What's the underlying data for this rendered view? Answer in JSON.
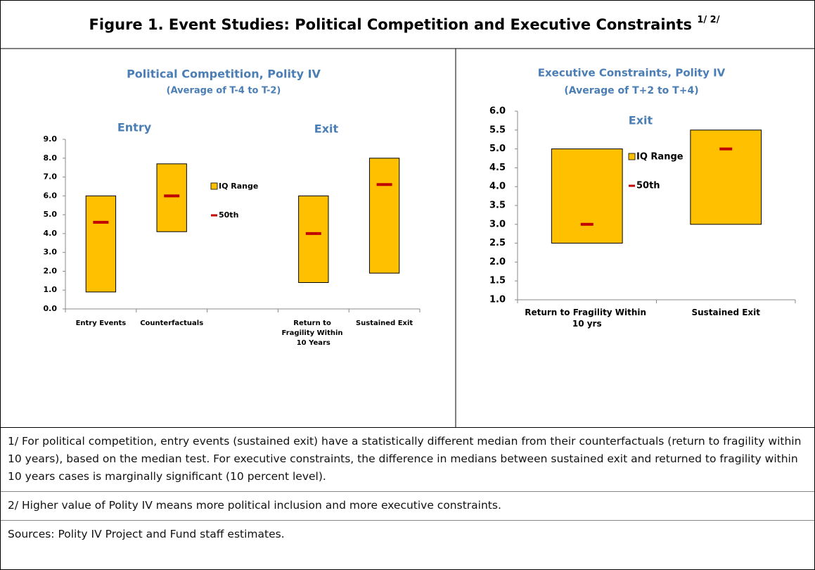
{
  "title": "Figure 1. Event Studies: Political Competition and Executive Constraints",
  "title_superscript": "1/ 2/",
  "chart_data": [
    {
      "type": "range",
      "title": "Political Competition, Polity IV",
      "subtitle": "(Average of T-4 to T-2)",
      "annotations": [
        "Entry",
        "Exit"
      ],
      "categories": [
        "Entry Events",
        "Counterfactuals",
        null,
        "Return to Fragility Within 10 Years",
        "Sustained Exit"
      ],
      "series": [
        {
          "name": "IQ Range",
          "color": "#ffc000",
          "low": [
            0.9,
            4.1,
            null,
            1.4,
            1.9
          ],
          "high": [
            6.0,
            7.7,
            null,
            6.0,
            8.0
          ]
        },
        {
          "name": "50th",
          "color": "#c00000",
          "values": [
            4.6,
            6.0,
            null,
            4.0,
            6.6
          ]
        }
      ],
      "ylim": [
        0,
        9
      ],
      "yticks": [
        {
          "value": 0,
          "label": "0.0"
        },
        {
          "value": 1,
          "label": "1.0"
        },
        {
          "value": 2,
          "label": "2.0"
        },
        {
          "value": 3,
          "label": "3.0"
        },
        {
          "value": 4,
          "label": "4.0"
        },
        {
          "value": 5,
          "label": "5.0"
        },
        {
          "value": 6,
          "label": "6.0"
        },
        {
          "value": 7,
          "label": "7.0"
        },
        {
          "value": 8,
          "label": "8.0"
        },
        {
          "value": 9,
          "label": "9.0"
        }
      ]
    },
    {
      "type": "range",
      "title": "Executive Constraints, Polity IV",
      "subtitle": "(Average  of T+2 to T+4)",
      "annotations": [
        "Exit"
      ],
      "categories": [
        "Return to Fragility Within 10 yrs",
        "Sustained Exit"
      ],
      "series": [
        {
          "name": "IQ Range",
          "color": "#ffc000",
          "low": [
            2.5,
            3.0
          ],
          "high": [
            5.0,
            5.5
          ]
        },
        {
          "name": "50th",
          "color": "#c00000",
          "values": [
            3.0,
            5.0
          ]
        }
      ],
      "ylim": [
        1,
        6
      ],
      "yticks": [
        {
          "value": 1,
          "label": "1.0"
        },
        1.5,
        {
          "value": 2,
          "label": "2.0"
        },
        2.5,
        {
          "value": 3,
          "label": "3.0"
        },
        3.5,
        {
          "value": 4,
          "label": "4.0"
        },
        4.5,
        {
          "value": 5,
          "label": "5.0"
        },
        5.5,
        {
          "value": 6,
          "label": "6.0"
        }
      ]
    }
  ],
  "notes": [
    "1/ For political competition, entry events (sustained exit) have a statistically different median from their counterfactuals (return to fragility within 10 years), based on the median test. For executive constraints, the difference in medians between sustained exit and returned to fragility within 10 years cases is marginally significant (10 percent level).",
    "2/ Higher value of Polity IV means more political inclusion and more executive constraints.",
    "Sources: Polity IV Project and Fund staff estimates."
  ]
}
